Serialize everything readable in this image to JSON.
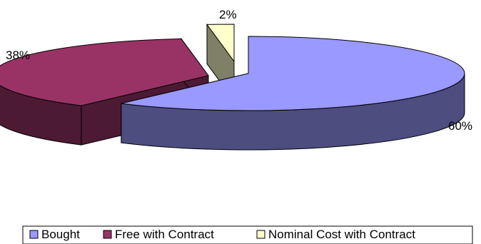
{
  "chart_data": {
    "type": "pie",
    "style": "3d-exploded",
    "categories": [
      "Bought",
      "Free with Contract",
      "Nominal Cost with Contract"
    ],
    "values": [
      60,
      38,
      2
    ],
    "value_labels": [
      "60%",
      "38%",
      "2%"
    ],
    "legend_position": "bottom",
    "colors": {
      "top": [
        "#9999ff",
        "#993366",
        "#ffffcc"
      ],
      "side": [
        "#4d4d80",
        "#4d1a33",
        "#808066"
      ]
    }
  }
}
